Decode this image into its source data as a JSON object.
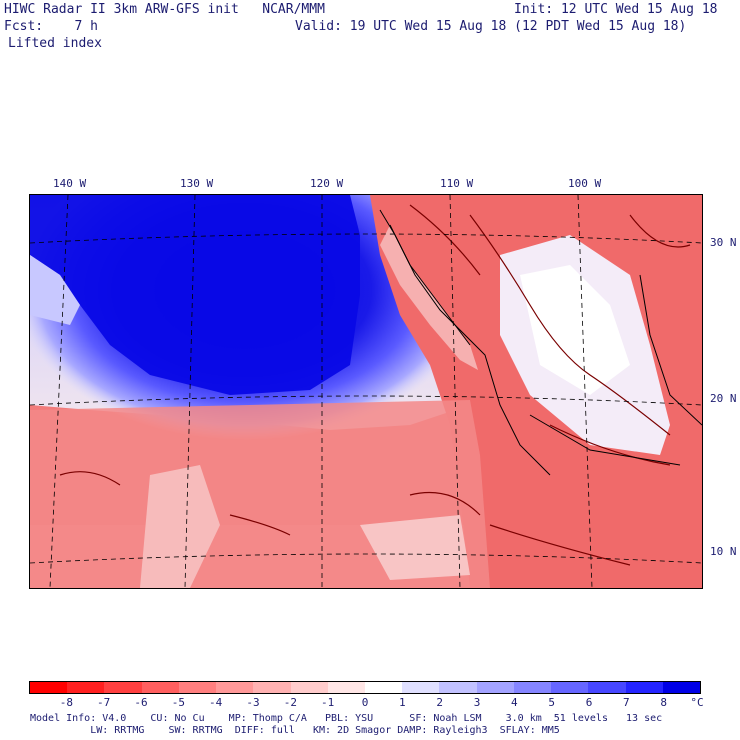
{
  "header": {
    "line1_left": "HIWC Radar II 3km ARW-GFS init   NCAR/MMM",
    "line1_right": "Init: 12 UTC Wed 15 Aug 18",
    "line2_left": "Fcst:    7 h",
    "line2_right": "Valid: 19 UTC Wed 15 Aug 18 (12 PDT Wed 15 Aug 18)",
    "field_name": "Lifted index"
  },
  "map": {
    "lon_labels": [
      "140 W",
      "130 W",
      "120 W",
      "110 W",
      "100 W"
    ],
    "lat_labels": [
      "30 N",
      "20 N",
      "10 N"
    ],
    "colors": {
      "ocean_stable": "#0000e0",
      "land_unstable": "#f07070",
      "contour": "#7a0000",
      "grid": "#000000"
    }
  },
  "colorbar": {
    "labels": [
      "-8",
      "-7",
      "-6",
      "-5",
      "-4",
      "-3",
      "-2",
      "-1",
      "0",
      "1",
      "2",
      "3",
      "4",
      "5",
      "6",
      "7",
      "8"
    ],
    "unit": "°C",
    "colors": [
      "#ff0000",
      "#ff2020",
      "#ff4040",
      "#ff5f5f",
      "#ff7f7f",
      "#ff9999",
      "#ffb2b2",
      "#ffcccc",
      "#ffe6e6",
      "#ffffff",
      "#e0e0ff",
      "#c2c2ff",
      "#a3a3ff",
      "#8585ff",
      "#6666ff",
      "#4747ff",
      "#2424ff",
      "#0000e6"
    ]
  },
  "footer": {
    "line1": "Model Info: V4.0    CU: No Cu    MP: Thomp C/A   PBL: YSU      SF: Noah LSM    3.0 km  51 levels   13 sec",
    "line2": "          LW: RRTMG    SW: RRTMG  DIFF: full   KM: 2D Smagor DAMP: Rayleigh3  SFLAY: MM5"
  }
}
